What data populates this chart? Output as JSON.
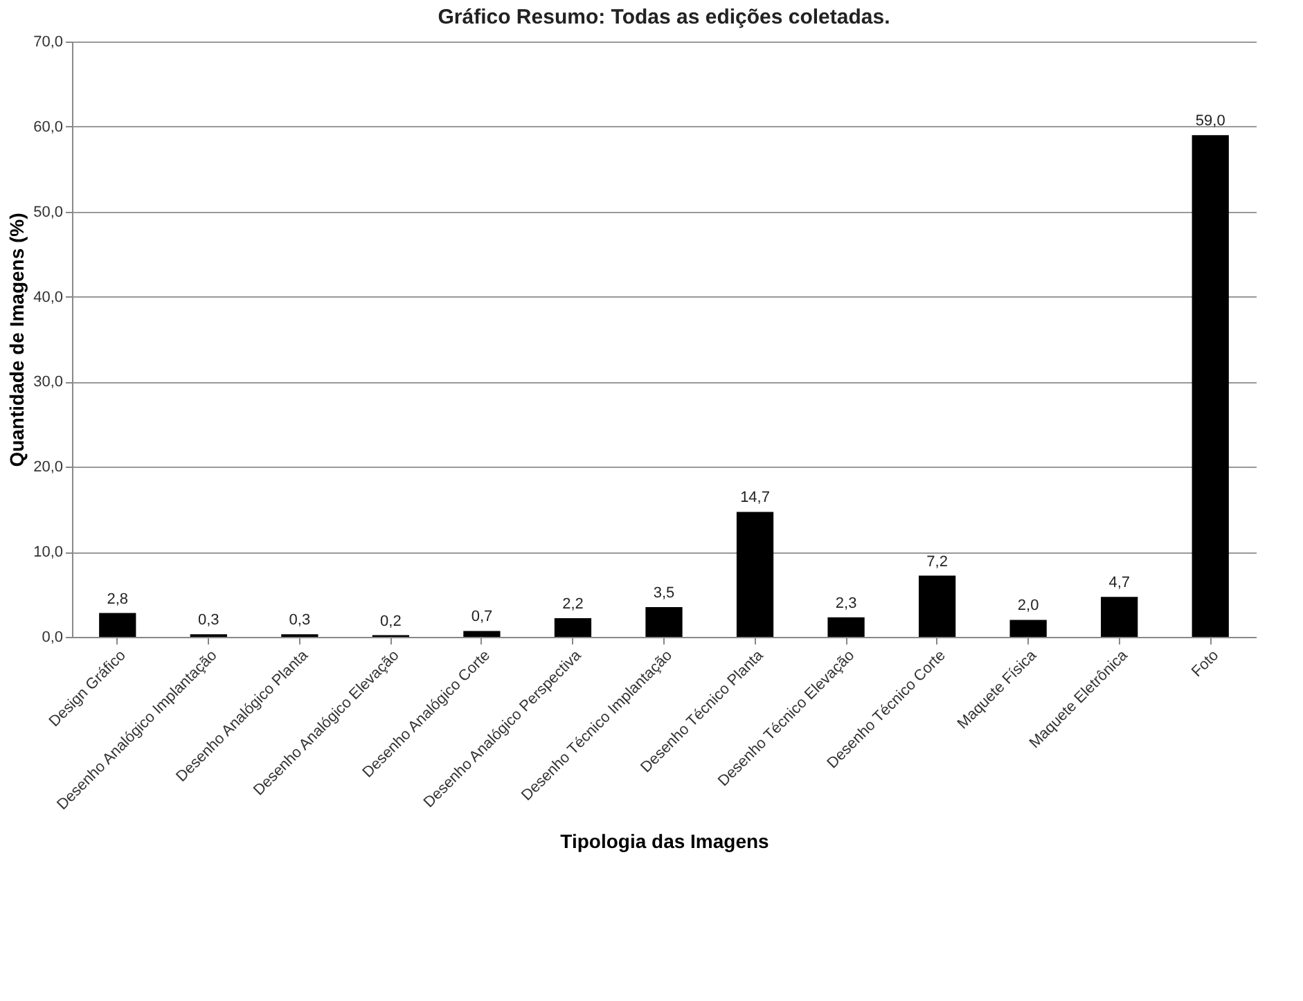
{
  "chart_data": {
    "type": "bar",
    "title": "Gráfico Resumo: Todas as edições coletadas.",
    "xlabel": "Tipologia  das Imagens",
    "ylabel": "Quantidade de Imagens  (%)",
    "categories": [
      "Design Gráfico",
      "Desenho Analógico Implantação",
      "Desenho Analógico  Planta",
      "Desenho Analógico  Elevação",
      "Desenho Analógico  Corte",
      "Desenho Analógico  Perspectiva",
      "Desenho Técnico Implantação",
      "Desenho Técnico Planta",
      "Desenho Técnico Elevação",
      "Desenho Técnico Corte",
      "Maquete Física",
      "Maquete Eletrônica",
      "Foto"
    ],
    "values": [
      2.8,
      0.3,
      0.3,
      0.2,
      0.7,
      2.2,
      3.5,
      14.7,
      2.3,
      7.2,
      2.0,
      4.7,
      59.0
    ],
    "value_labels": [
      "2,8",
      "0,3",
      "0,3",
      "0,2",
      "0,7",
      "2,2",
      "3,5",
      "14,7",
      "2,3",
      "7,2",
      "2,0",
      "4,7",
      "59,0"
    ],
    "color": "#000000",
    "ylim": [
      0,
      70
    ],
    "yticks": [
      {
        "value": 0,
        "label": "0,0"
      },
      {
        "value": 10,
        "label": "10,0"
      },
      {
        "value": 20,
        "label": "20,0"
      },
      {
        "value": 30,
        "label": "30,0"
      },
      {
        "value": 40,
        "label": "40,0"
      },
      {
        "value": 50,
        "label": "50,0"
      },
      {
        "value": 60,
        "label": "60,0"
      },
      {
        "value": 70,
        "label": "70,0"
      }
    ],
    "grid": "y"
  }
}
